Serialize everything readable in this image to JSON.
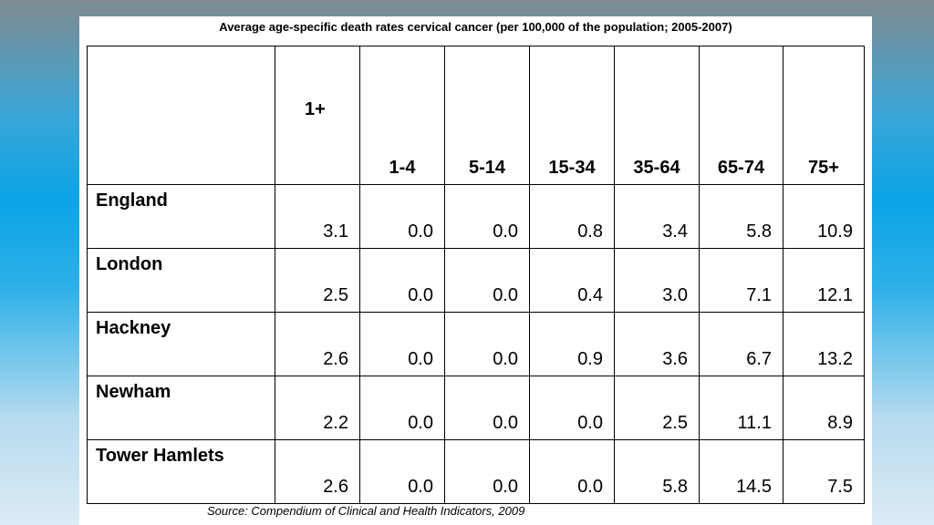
{
  "title": "Average age-specific death rates cervical cancer (per 100,000 of the population; 2005-2007)",
  "table": {
    "columns": [
      "1+",
      "1-4",
      "5-14",
      "15-34",
      "35-64",
      "65-74",
      "75+"
    ],
    "rows": [
      {
        "region": "England",
        "values": [
          "3.1",
          "0.0",
          "0.0",
          "0.8",
          "3.4",
          "5.8",
          "10.9"
        ]
      },
      {
        "region": "London",
        "values": [
          "2.5",
          "0.0",
          "0.0",
          "0.4",
          "3.0",
          "7.1",
          "12.1"
        ]
      },
      {
        "region": "Hackney",
        "values": [
          "2.6",
          "0.0",
          "0.0",
          "0.9",
          "3.6",
          "6.7",
          "13.2"
        ]
      },
      {
        "region": "Newham",
        "values": [
          "2.2",
          "0.0",
          "0.0",
          "0.0",
          "2.5",
          "11.1",
          "8.9"
        ]
      },
      {
        "region": "Tower Hamlets",
        "values": [
          "2.6",
          "0.0",
          "0.0",
          "0.0",
          "5.8",
          "14.5",
          "7.5"
        ]
      }
    ]
  },
  "source": "Source: Compendium of Clinical and Health Indicators, 2009"
}
